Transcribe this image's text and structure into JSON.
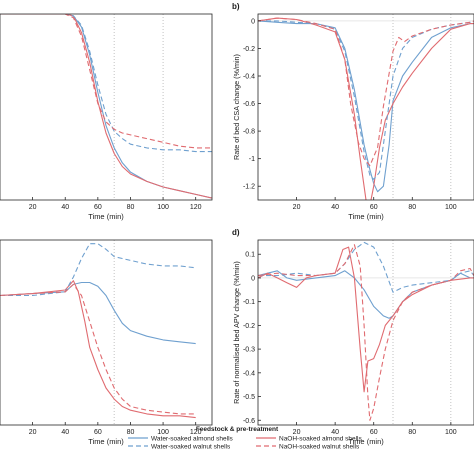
{
  "colors": {
    "blue": "#6fa0cf",
    "red": "#e06b70",
    "axis": "#262626",
    "guide": "#b3b3b3"
  },
  "legend": {
    "title": "Feedstock & pre-treatment",
    "entries": [
      {
        "label": "Water-soaked almond shells",
        "color": "#6fa0cf",
        "dash": "solid"
      },
      {
        "label": "NaOH-soaked almond shells",
        "color": "#e06b70",
        "dash": "solid"
      },
      {
        "label": "Water-soaked walnut shells",
        "color": "#6fa0cf",
        "dash": "dashed"
      },
      {
        "label": "NaOH-soaked walnut shells",
        "color": "#e06b70",
        "dash": "dashed"
      }
    ]
  },
  "chart_data": [
    {
      "type": "line",
      "panel_label": "",
      "xlabel": "Time (min)",
      "ylabel": "",
      "xlim": [
        0,
        130
      ],
      "ylim": [
        0,
        1
      ],
      "xticks": [
        20,
        40,
        60,
        80,
        100,
        120
      ],
      "yticks": [],
      "vlines": [
        70,
        100
      ],
      "series": [
        {
          "name": "Water-soaked almond shells",
          "color": "#6fa0cf",
          "dash": "solid",
          "x": [
            0,
            20,
            40,
            45,
            50,
            55,
            60,
            65,
            70,
            75,
            80,
            90,
            100,
            110,
            120,
            130
          ],
          "y": [
            1.0,
            1.0,
            1.0,
            0.99,
            0.93,
            0.78,
            0.58,
            0.4,
            0.28,
            0.2,
            0.15,
            0.1,
            0.07,
            0.05,
            0.03,
            0.01
          ]
        },
        {
          "name": "NaOH-soaked almond shells",
          "color": "#e06b70",
          "dash": "solid",
          "x": [
            0,
            20,
            40,
            45,
            50,
            55,
            60,
            65,
            70,
            75,
            80,
            90,
            100,
            110,
            120,
            130
          ],
          "y": [
            1.0,
            1.0,
            1.0,
            0.99,
            0.9,
            0.74,
            0.53,
            0.36,
            0.25,
            0.18,
            0.14,
            0.1,
            0.07,
            0.05,
            0.03,
            0.01
          ]
        },
        {
          "name": "Water-soaked walnut shells",
          "color": "#6fa0cf",
          "dash": "dashed",
          "x": [
            0,
            20,
            40,
            45,
            50,
            55,
            60,
            65,
            70,
            75,
            80,
            90,
            100,
            110,
            120,
            130
          ],
          "y": [
            1.0,
            1.0,
            1.0,
            0.99,
            0.94,
            0.8,
            0.62,
            0.46,
            0.37,
            0.33,
            0.3,
            0.28,
            0.27,
            0.27,
            0.26,
            0.26
          ]
        },
        {
          "name": "NaOH-soaked walnut shells",
          "color": "#e06b70",
          "dash": "dashed",
          "x": [
            0,
            20,
            40,
            45,
            50,
            55,
            60,
            65,
            70,
            75,
            80,
            90,
            100,
            110,
            120,
            130
          ],
          "y": [
            1.0,
            1.0,
            1.0,
            0.98,
            0.88,
            0.7,
            0.52,
            0.42,
            0.38,
            0.36,
            0.35,
            0.33,
            0.31,
            0.29,
            0.28,
            0.28
          ]
        }
      ]
    },
    {
      "type": "line",
      "panel_label": "b)",
      "xlabel": "Time (min)",
      "ylabel": "Rate of bed CSA change (%/min)",
      "xlim": [
        0,
        112
      ],
      "ylim": [
        -1.3,
        0.05
      ],
      "xticks": [
        20,
        40,
        60,
        80,
        100
      ],
      "yticks": [
        0,
        -0.2,
        -0.4,
        -0.6,
        -0.8,
        -1,
        -1.2
      ],
      "vlines": [
        70,
        100
      ],
      "series": [
        {
          "name": "Water-soaked almond shells",
          "color": "#6fa0cf",
          "dash": "solid",
          "x": [
            0,
            10,
            20,
            30,
            40,
            45,
            50,
            55,
            58,
            60,
            62,
            65,
            68,
            70,
            75,
            80,
            90,
            100,
            110,
            112
          ],
          "y": [
            0,
            -0.01,
            -0.02,
            -0.02,
            -0.05,
            -0.2,
            -0.5,
            -0.9,
            -1.08,
            -1.18,
            -1.24,
            -1.2,
            -0.9,
            -0.58,
            -0.4,
            -0.3,
            -0.12,
            -0.05,
            -0.02,
            -0.02
          ]
        },
        {
          "name": "NaOH-soaked almond shells",
          "color": "#e06b70",
          "dash": "solid",
          "x": [
            0,
            10,
            20,
            30,
            40,
            45,
            50,
            53,
            56,
            58,
            60,
            63,
            66,
            70,
            75,
            80,
            90,
            100,
            110,
            112
          ],
          "y": [
            0,
            0.02,
            0.01,
            -0.03,
            -0.08,
            -0.28,
            -0.68,
            -1.0,
            -1.3,
            -1.34,
            -1.2,
            -0.92,
            -0.72,
            -0.6,
            -0.48,
            -0.38,
            -0.2,
            -0.06,
            -0.02,
            -0.02
          ]
        },
        {
          "name": "Water-soaked walnut shells",
          "color": "#6fa0cf",
          "dash": "dashed",
          "x": [
            0,
            10,
            20,
            30,
            40,
            45,
            50,
            55,
            58,
            60,
            63,
            66,
            70,
            75,
            80,
            90,
            100,
            110,
            112
          ],
          "y": [
            0,
            0,
            -0.01,
            -0.02,
            -0.06,
            -0.22,
            -0.55,
            -0.95,
            -1.12,
            -1.15,
            -1.1,
            -0.8,
            -0.4,
            -0.2,
            -0.12,
            -0.06,
            -0.03,
            -0.01,
            -0.01
          ]
        },
        {
          "name": "NaOH-soaked walnut shells",
          "color": "#e06b70",
          "dash": "dashed",
          "x": [
            0,
            10,
            20,
            30,
            40,
            45,
            48,
            52,
            55,
            58,
            62,
            65,
            70,
            73,
            76,
            80,
            90,
            100,
            110,
            112
          ],
          "y": [
            0,
            0.02,
            0.01,
            -0.02,
            -0.06,
            -0.28,
            -0.6,
            -0.88,
            -1.0,
            -1.05,
            -0.92,
            -0.62,
            -0.22,
            -0.12,
            -0.15,
            -0.11,
            -0.06,
            -0.03,
            -0.01,
            0
          ]
        }
      ]
    },
    {
      "type": "line",
      "panel_label": "",
      "xlabel": "Time (min)",
      "ylabel": "",
      "xlim": [
        0,
        130
      ],
      "ylim": [
        0,
        1
      ],
      "xticks": [
        20,
        40,
        60,
        80,
        100,
        120
      ],
      "yticks": [],
      "vlines": [
        70
      ],
      "series": [
        {
          "name": "Water-soaked almond shells",
          "color": "#6fa0cf",
          "dash": "solid",
          "x": [
            0,
            20,
            40,
            45,
            50,
            55,
            60,
            65,
            70,
            75,
            80,
            90,
            100,
            110,
            120
          ],
          "y": [
            0.7,
            0.71,
            0.72,
            0.76,
            0.77,
            0.77,
            0.75,
            0.7,
            0.62,
            0.55,
            0.51,
            0.48,
            0.46,
            0.45,
            0.44
          ]
        },
        {
          "name": "NaOH-soaked almond shells",
          "color": "#e06b70",
          "dash": "solid",
          "x": [
            0,
            20,
            40,
            45,
            48,
            52,
            55,
            60,
            65,
            70,
            75,
            80,
            90,
            100,
            110,
            120
          ],
          "y": [
            0.7,
            0.71,
            0.73,
            0.78,
            0.72,
            0.56,
            0.42,
            0.3,
            0.2,
            0.14,
            0.1,
            0.08,
            0.06,
            0.05,
            0.05,
            0.04
          ]
        },
        {
          "name": "Water-soaked walnut shells",
          "color": "#6fa0cf",
          "dash": "dashed",
          "x": [
            0,
            20,
            40,
            45,
            50,
            55,
            60,
            65,
            70,
            75,
            80,
            90,
            100,
            110,
            120
          ],
          "y": [
            0.7,
            0.7,
            0.72,
            0.8,
            0.9,
            0.98,
            0.98,
            0.95,
            0.91,
            0.9,
            0.89,
            0.87,
            0.86,
            0.86,
            0.85
          ]
        },
        {
          "name": "NaOH-soaked walnut shells",
          "color": "#e06b70",
          "dash": "dashed",
          "x": [
            0,
            20,
            40,
            45,
            50,
            55,
            60,
            65,
            70,
            75,
            80,
            90,
            100,
            110,
            120
          ],
          "y": [
            0.7,
            0.71,
            0.72,
            0.76,
            0.7,
            0.56,
            0.42,
            0.3,
            0.2,
            0.14,
            0.1,
            0.08,
            0.07,
            0.06,
            0.06
          ]
        }
      ]
    },
    {
      "type": "line",
      "panel_label": "d)",
      "xlabel": "Time (min)",
      "ylabel": "Rate of normalised bed APV change (%/min)",
      "xlim": [
        0,
        112
      ],
      "ylim": [
        -0.62,
        0.16
      ],
      "xticks": [
        20,
        40,
        60,
        80,
        100
      ],
      "yticks": [
        0.1,
        0,
        -0.1,
        -0.2,
        -0.3,
        -0.4,
        -0.5,
        -0.6
      ],
      "vlines": [
        70,
        100
      ],
      "series": [
        {
          "name": "Water-soaked almond shells",
          "color": "#6fa0cf",
          "dash": "solid",
          "x": [
            0,
            5,
            10,
            15,
            20,
            30,
            40,
            45,
            50,
            55,
            60,
            65,
            68,
            70,
            75,
            80,
            90,
            100,
            105,
            110,
            112
          ],
          "y": [
            0.01,
            0.02,
            0.03,
            0.0,
            -0.01,
            0.0,
            0.01,
            0.03,
            0.0,
            -0.05,
            -0.12,
            -0.16,
            -0.17,
            -0.16,
            -0.1,
            -0.06,
            -0.03,
            -0.01,
            0.02,
            0.0,
            0.0
          ]
        },
        {
          "name": "NaOH-soaked almond shells",
          "color": "#e06b70",
          "dash": "solid",
          "x": [
            0,
            5,
            10,
            15,
            20,
            25,
            30,
            40,
            44,
            47,
            50,
            53,
            55,
            57,
            60,
            63,
            66,
            70,
            75,
            80,
            90,
            100,
            110,
            112
          ],
          "y": [
            0,
            0.02,
            0.0,
            -0.02,
            -0.04,
            0.0,
            0.01,
            0.02,
            0.12,
            0.13,
            0.0,
            -0.3,
            -0.48,
            -0.35,
            -0.34,
            -0.28,
            -0.2,
            -0.16,
            -0.1,
            -0.07,
            -0.03,
            -0.01,
            0.0,
            0.0
          ]
        },
        {
          "name": "Water-soaked walnut shells",
          "color": "#6fa0cf",
          "dash": "dashed",
          "x": [
            0,
            10,
            20,
            30,
            40,
            45,
            50,
            55,
            60,
            65,
            70,
            75,
            80,
            90,
            100,
            105,
            110,
            112
          ],
          "y": [
            0.01,
            0.01,
            0.02,
            0.01,
            0.02,
            0.06,
            0.12,
            0.15,
            0.13,
            0.05,
            -0.06,
            -0.04,
            -0.03,
            -0.02,
            -0.01,
            0.02,
            0.03,
            0.01
          ]
        },
        {
          "name": "NaOH-soaked walnut shells",
          "color": "#e06b70",
          "dash": "dashed",
          "x": [
            0,
            10,
            20,
            30,
            40,
            45,
            50,
            53,
            55,
            57,
            58,
            60,
            63,
            66,
            70,
            75,
            80,
            90,
            100,
            105,
            110,
            112
          ],
          "y": [
            0.01,
            0.02,
            0.01,
            0.01,
            0.02,
            0.06,
            0.14,
            0.05,
            -0.2,
            -0.5,
            -0.6,
            -0.55,
            -0.42,
            -0.3,
            -0.18,
            -0.1,
            -0.06,
            -0.03,
            -0.01,
            0.03,
            0.04,
            0.01
          ]
        }
      ]
    }
  ]
}
